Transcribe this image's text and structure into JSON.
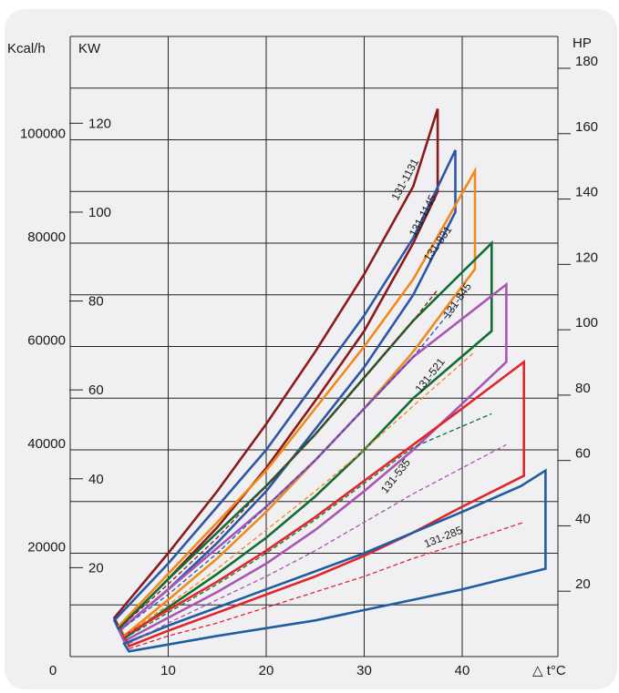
{
  "chart_data": {
    "type": "line",
    "xlabel": "△ t°C",
    "left_axis_label": "Kcal/h",
    "kw_axis_label": "KW",
    "right_axis_label": "HP",
    "x_ticks": [
      "0",
      "10",
      "20",
      "30",
      "40"
    ],
    "kcal_ticks": [
      "20000",
      "40000",
      "60000",
      "80000",
      "100000"
    ],
    "kw_ticks": [
      "20",
      "40",
      "60",
      "80",
      "100",
      "120"
    ],
    "hp_ticks": [
      "20",
      "40",
      "60",
      "80",
      "100",
      "120",
      "140",
      "160",
      "180"
    ],
    "xlim": [
      0,
      50
    ],
    "ylim_kcal": [
      0,
      120000
    ],
    "grid": true,
    "series": [
      {
        "name": "131-1131",
        "color": "#8b1a1a",
        "label_at": [
          34.5,
          92000
        ],
        "label_angle": -62,
        "upper": [
          [
            4.5,
            7500
          ],
          [
            10,
            20000
          ],
          [
            15,
            32000
          ],
          [
            20,
            45000
          ],
          [
            25,
            59000
          ],
          [
            30,
            74000
          ],
          [
            35,
            91000
          ],
          [
            37.5,
            106000
          ]
        ],
        "lower": [
          [
            5,
            5500
          ],
          [
            10,
            15000
          ],
          [
            15,
            25000
          ],
          [
            20,
            36500
          ],
          [
            25,
            49500
          ],
          [
            30,
            63000
          ],
          [
            35,
            80000
          ],
          [
            37.5,
            90000
          ]
        ],
        "right_x": 37.5
      },
      {
        "name": "131-1145",
        "color": "#2e56a6",
        "label_at": [
          36.3,
          85000
        ],
        "label_angle": -62,
        "upper": [
          [
            4.5,
            7000
          ],
          [
            10,
            18000
          ],
          [
            15,
            29000
          ],
          [
            20,
            40000
          ],
          [
            25,
            53000
          ],
          [
            30,
            66000
          ],
          [
            35,
            81000
          ],
          [
            39.3,
            98000
          ]
        ],
        "lower": [
          [
            5,
            5000
          ],
          [
            10,
            13000
          ],
          [
            15,
            22000
          ],
          [
            20,
            32000
          ],
          [
            25,
            44000
          ],
          [
            30,
            56000
          ],
          [
            35,
            70000
          ],
          [
            39.3,
            86000
          ]
        ],
        "right_x": 39.3
      },
      {
        "name": "131-831",
        "color": "#f08a1c",
        "label_at": [
          37.8,
          79500
        ],
        "label_angle": -55,
        "upper": [
          [
            5,
            6000
          ],
          [
            10,
            16000
          ],
          [
            15,
            26000
          ],
          [
            20,
            36000
          ],
          [
            25,
            48000
          ],
          [
            30,
            60000
          ],
          [
            35,
            73000
          ],
          [
            41.3,
            94000
          ]
        ],
        "lower": [
          [
            5.5,
            4000
          ],
          [
            10,
            11000
          ],
          [
            15,
            19000
          ],
          [
            20,
            28000
          ],
          [
            25,
            38000
          ],
          [
            30,
            48000
          ],
          [
            35,
            59000
          ],
          [
            41.3,
            75000
          ]
        ],
        "right_x": 41.3
      },
      {
        "name": "131-845",
        "color": "#116d34",
        "label_at": [
          39.8,
          68500
        ],
        "label_angle": -55,
        "upper": [
          [
            5,
            5500
          ],
          [
            10,
            15000
          ],
          [
            15,
            24000
          ],
          [
            20,
            33000
          ],
          [
            25,
            43000
          ],
          [
            30,
            54000
          ],
          [
            35,
            65000
          ],
          [
            43,
            80000
          ]
        ],
        "lower": [
          [
            5.5,
            3500
          ],
          [
            10,
            9500
          ],
          [
            15,
            16000
          ],
          [
            20,
            23000
          ],
          [
            25,
            31000
          ],
          [
            30,
            40000
          ],
          [
            35,
            50000
          ],
          [
            43,
            63000
          ]
        ],
        "right_x": 43
      },
      {
        "name": "131-521",
        "color": "#a955b5",
        "label_at": [
          37,
          54000
        ],
        "label_angle": -52,
        "upper": [
          [
            5,
            5000
          ],
          [
            10,
            13000
          ],
          [
            15,
            21000
          ],
          [
            20,
            29000
          ],
          [
            25,
            38000
          ],
          [
            30,
            48000
          ],
          [
            35,
            58000
          ],
          [
            44.5,
            72000
          ]
        ],
        "lower": [
          [
            5.5,
            3000
          ],
          [
            10,
            7500
          ],
          [
            15,
            12500
          ],
          [
            20,
            18000
          ],
          [
            25,
            24500
          ],
          [
            30,
            32000
          ],
          [
            35,
            40000
          ],
          [
            44.5,
            57000
          ]
        ],
        "right_x": 44.5
      },
      {
        "name": "131-535",
        "color": "#e0262a",
        "label_at": [
          33.5,
          34500
        ],
        "label_angle": -52,
        "upper": [
          [
            5.5,
            4000
          ],
          [
            10,
            9000
          ],
          [
            15,
            14500
          ],
          [
            20,
            20500
          ],
          [
            25,
            27000
          ],
          [
            30,
            34000
          ],
          [
            35,
            41000
          ],
          [
            40,
            48000
          ],
          [
            46.3,
            57000
          ]
        ],
        "lower": [
          [
            6,
            2000
          ],
          [
            10,
            5000
          ],
          [
            15,
            8500
          ],
          [
            20,
            12000
          ],
          [
            25,
            15500
          ],
          [
            30,
            19500
          ],
          [
            35,
            24000
          ],
          [
            40,
            29000
          ],
          [
            46.3,
            35000
          ]
        ],
        "right_x": 46.3
      },
      {
        "name": "131-285",
        "color": "#1f5da1",
        "label_at": [
          38.2,
          22500
        ],
        "label_angle": -22,
        "upper": [
          [
            5.5,
            2500
          ],
          [
            10,
            6000
          ],
          [
            15,
            9500
          ],
          [
            20,
            13000
          ],
          [
            25,
            16500
          ],
          [
            30,
            20000
          ],
          [
            35,
            24000
          ],
          [
            40,
            28000
          ],
          [
            46,
            33000
          ],
          [
            48.5,
            36000
          ]
        ],
        "lower": [
          [
            6,
            1000
          ],
          [
            15,
            4000
          ],
          [
            20,
            5500
          ],
          [
            25,
            7000
          ],
          [
            30,
            9000
          ],
          [
            35,
            11000
          ],
          [
            40,
            13000
          ],
          [
            48.5,
            17000
          ]
        ],
        "right_x": 48.5
      },
      {
        "name": "",
        "color": "#8b1a1a",
        "dashed": true,
        "points": [
          [
            5,
            5500
          ],
          [
            10,
            14000
          ],
          [
            15,
            23000
          ],
          [
            20,
            33000
          ],
          [
            25,
            43000
          ],
          [
            30,
            54000
          ],
          [
            35,
            65000
          ],
          [
            37.5,
            71000
          ]
        ]
      },
      {
        "name": "",
        "color": "#2e56a6",
        "dashed": true,
        "points": [
          [
            5,
            5000
          ],
          [
            10,
            12000
          ],
          [
            15,
            20000
          ],
          [
            20,
            29000
          ],
          [
            25,
            38000
          ],
          [
            30,
            48000
          ],
          [
            35,
            58000
          ],
          [
            39.3,
            68000
          ]
        ]
      },
      {
        "name": "",
        "color": "#f08a1c",
        "dashed": true,
        "points": [
          [
            5.5,
            4000
          ],
          [
            10,
            10000
          ],
          [
            15,
            17000
          ],
          [
            20,
            24500
          ],
          [
            25,
            32000
          ],
          [
            30,
            40000
          ],
          [
            35,
            48500
          ],
          [
            41.3,
            59000
          ]
        ]
      },
      {
        "name": "",
        "color": "#116d34",
        "dashed": true,
        "points": [
          [
            5.5,
            3500
          ],
          [
            10,
            8500
          ],
          [
            15,
            14000
          ],
          [
            20,
            20000
          ],
          [
            25,
            26500
          ],
          [
            30,
            33500
          ],
          [
            35,
            40500
          ],
          [
            43,
            47000
          ]
        ]
      },
      {
        "name": "",
        "color": "#a955b5",
        "dashed": true,
        "points": [
          [
            6,
            2500
          ],
          [
            10,
            6500
          ],
          [
            15,
            11000
          ],
          [
            20,
            15500
          ],
          [
            25,
            20500
          ],
          [
            30,
            26000
          ],
          [
            35,
            31500
          ],
          [
            44.5,
            41000
          ]
        ]
      },
      {
        "name": "",
        "color": "#e0262a",
        "dashed": true,
        "points": [
          [
            6,
            1500
          ],
          [
            10,
            4000
          ],
          [
            15,
            6500
          ],
          [
            20,
            9500
          ],
          [
            25,
            12500
          ],
          [
            30,
            15500
          ],
          [
            35,
            19000
          ],
          [
            40,
            22000
          ],
          [
            46.3,
            26000
          ]
        ]
      }
    ]
  }
}
